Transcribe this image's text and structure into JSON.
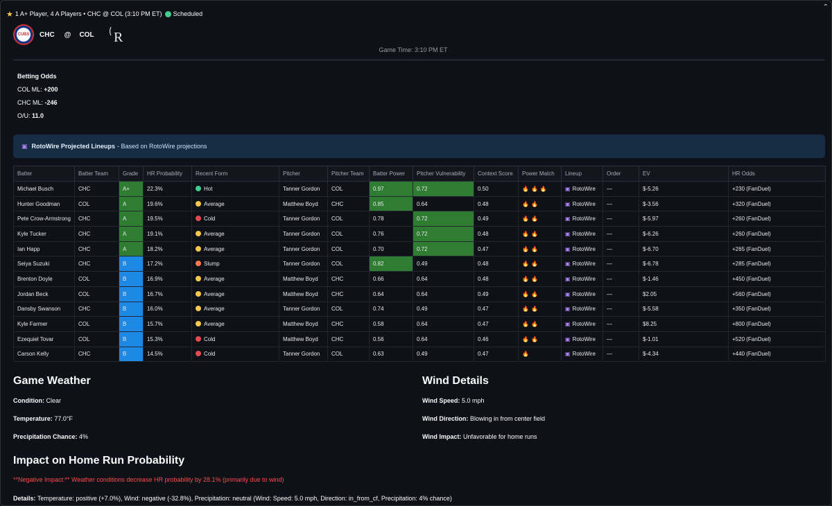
{
  "header": {
    "summary": "1 A+ Player, 4 A Players • CHC @ COL (3:10 PM ET)",
    "status": "Scheduled",
    "collapse_glyph": "⌃"
  },
  "matchup": {
    "away": "CHC",
    "at": "@",
    "home": "COL",
    "away_logo_text": "CUBS",
    "home_logo_text": "R"
  },
  "game_time": "Game Time: 3:10 PM ET",
  "odds": {
    "title": "Betting Odds",
    "col_label": "COL ML: ",
    "col_value": "+200",
    "chc_label": "CHC ML: ",
    "chc_value": "-246",
    "ou_label": "O/U: ",
    "ou_value": "11.0"
  },
  "info": {
    "icon": "rotowire-icon",
    "strong": "RotoWire Projected Lineups",
    "text": "- Based on RotoWire projections"
  },
  "table": {
    "headers": [
      "Batter",
      "Batter Team",
      "Grade",
      "HR Probability",
      "Recent Form",
      "Pitcher",
      "Pitcher Team",
      "Batter Power",
      "Pitcher Vulnerability",
      "Context Score",
      "Power Match",
      "Lineup",
      "Order",
      "EV",
      "HR Odds"
    ],
    "rows": [
      {
        "batter": "Michael Busch",
        "team": "CHC",
        "grade": "A+",
        "hr": "22.3%",
        "form": "Hot",
        "pitcher": "Tanner Gordon",
        "pteam": "COL",
        "power": "0.97",
        "vuln": "0.72",
        "ctx": "0.50",
        "fires": "🔥🔥🔥",
        "lineup": "RotoWire",
        "order": "—",
        "ev": "$-5.26",
        "odds": "+230 (FanDuel)"
      },
      {
        "batter": "Hunter Goodman",
        "team": "COL",
        "grade": "A",
        "hr": "19.6%",
        "form": "Average",
        "pitcher": "Matthew Boyd",
        "pteam": "CHC",
        "power": "0.85",
        "vuln": "0.64",
        "ctx": "0.48",
        "fires": "🔥🔥",
        "lineup": "RotoWire",
        "order": "—",
        "ev": "$-3.56",
        "odds": "+320 (FanDuel)"
      },
      {
        "batter": "Pete Crow-Armstrong",
        "team": "CHC",
        "grade": "A",
        "hr": "19.5%",
        "form": "Cold",
        "pitcher": "Tanner Gordon",
        "pteam": "COL",
        "power": "0.78",
        "vuln": "0.72",
        "ctx": "0.49",
        "fires": "🔥🔥",
        "lineup": "RotoWire",
        "order": "—",
        "ev": "$-5.97",
        "odds": "+260 (FanDuel)"
      },
      {
        "batter": "Kyle Tucker",
        "team": "CHC",
        "grade": "A",
        "hr": "19.1%",
        "form": "Average",
        "pitcher": "Tanner Gordon",
        "pteam": "COL",
        "power": "0.76",
        "vuln": "0.72",
        "ctx": "0.48",
        "fires": "🔥🔥",
        "lineup": "RotoWire",
        "order": "—",
        "ev": "$-6.26",
        "odds": "+260 (FanDuel)"
      },
      {
        "batter": "Ian Happ",
        "team": "CHC",
        "grade": "A",
        "hr": "18.2%",
        "form": "Average",
        "pitcher": "Tanner Gordon",
        "pteam": "COL",
        "power": "0.70",
        "vuln": "0.72",
        "ctx": "0.47",
        "fires": "🔥🔥",
        "lineup": "RotoWire",
        "order": "—",
        "ev": "$-6.70",
        "odds": "+265 (FanDuel)"
      },
      {
        "batter": "Seiya Suzuki",
        "team": "CHC",
        "grade": "B",
        "hr": "17.2%",
        "form": "Slump",
        "pitcher": "Tanner Gordon",
        "pteam": "COL",
        "power": "0.82",
        "vuln": "0.49",
        "ctx": "0.48",
        "fires": "🔥🔥",
        "lineup": "RotoWire",
        "order": "—",
        "ev": "$-6.78",
        "odds": "+285 (FanDuel)"
      },
      {
        "batter": "Brenton Doyle",
        "team": "COL",
        "grade": "B",
        "hr": "16.9%",
        "form": "Average",
        "pitcher": "Matthew Boyd",
        "pteam": "CHC",
        "power": "0.66",
        "vuln": "0.64",
        "ctx": "0.48",
        "fires": "🔥🔥",
        "lineup": "RotoWire",
        "order": "—",
        "ev": "$-1.46",
        "odds": "+450 (FanDuel)"
      },
      {
        "batter": "Jordan Beck",
        "team": "COL",
        "grade": "B",
        "hr": "16.7%",
        "form": "Average",
        "pitcher": "Matthew Boyd",
        "pteam": "CHC",
        "power": "0.64",
        "vuln": "0.64",
        "ctx": "0.49",
        "fires": "🔥🔥",
        "lineup": "RotoWire",
        "order": "—",
        "ev": "$2.05",
        "odds": "+560 (FanDuel)"
      },
      {
        "batter": "Dansby Swanson",
        "team": "CHC",
        "grade": "B",
        "hr": "16.0%",
        "form": "Average",
        "pitcher": "Tanner Gordon",
        "pteam": "COL",
        "power": "0.74",
        "vuln": "0.49",
        "ctx": "0.47",
        "fires": "🔥🔥",
        "lineup": "RotoWire",
        "order": "—",
        "ev": "$-5.58",
        "odds": "+350 (FanDuel)"
      },
      {
        "batter": "Kyle Farmer",
        "team": "COL",
        "grade": "B",
        "hr": "15.7%",
        "form": "Average",
        "pitcher": "Matthew Boyd",
        "pteam": "CHC",
        "power": "0.58",
        "vuln": "0.64",
        "ctx": "0.47",
        "fires": "🔥🔥",
        "lineup": "RotoWire",
        "order": "—",
        "ev": "$8.25",
        "odds": "+800 (FanDuel)"
      },
      {
        "batter": "Ezequiel Tovar",
        "team": "COL",
        "grade": "B",
        "hr": "15.3%",
        "form": "Cold",
        "pitcher": "Matthew Boyd",
        "pteam": "CHC",
        "power": "0.56",
        "vuln": "0.64",
        "ctx": "0.46",
        "fires": "🔥🔥",
        "lineup": "RotoWire",
        "order": "—",
        "ev": "$-1.01",
        "odds": "+520 (FanDuel)"
      },
      {
        "batter": "Carson Kelly",
        "team": "CHC",
        "grade": "B",
        "hr": "14.5%",
        "form": "Cold",
        "pitcher": "Tanner Gordon",
        "pteam": "COL",
        "power": "0.63",
        "vuln": "0.49",
        "ctx": "0.47",
        "fires": "🔥",
        "lineup": "RotoWire",
        "order": "—",
        "ev": "$-4.34",
        "odds": "+440 (FanDuel)"
      }
    ],
    "form_colors": {
      "Hot": "#3ecf8e",
      "Average": "#f7c948",
      "Cold": "#e5484d",
      "Slump": "#ff7849"
    },
    "highlight_color": "#2f7d32",
    "grade_blue": "#1e88e5"
  },
  "weather": {
    "title": "Game Weather",
    "condition_label": "Condition:",
    "condition": "Clear",
    "temp_label": "Temperature:",
    "temp": "77.0°F",
    "precip_label": "Precipitation Chance:",
    "precip": "4%"
  },
  "wind": {
    "title": "Wind Details",
    "speed_label": "Wind Speed:",
    "speed": "5.0 mph",
    "direction_label": "Wind Direction:",
    "direction": "Blowing in from center field",
    "impact_label": "Wind Impact:",
    "impact": "Unfavorable for home runs"
  },
  "impact": {
    "title": "Impact on Home Run Probability",
    "negative": "**Negative Impact:** Weather conditions decrease HR probability by 28.1% (primarily due to wind)",
    "details_label": "Details:",
    "details": "Temperature: positive (+7.0%), Wind: negative (-32.8%), Precipitation: neutral (Wind: Speed: 5.0 mph, Direction: in_from_cf, Precipitation: 4% chance)"
  }
}
